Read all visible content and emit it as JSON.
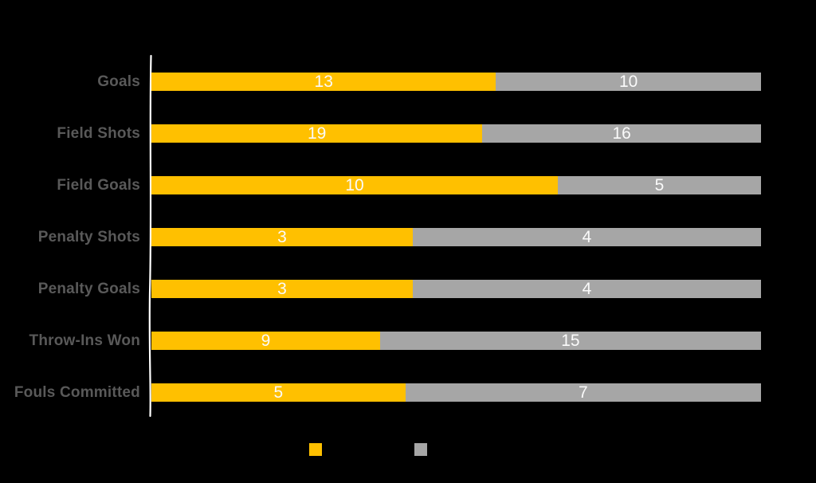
{
  "chart_data": {
    "type": "bar",
    "variant": "horizontal-stacked-100pct",
    "title": "",
    "xlabel": "",
    "ylabel": "",
    "grid": false,
    "legend_position": "bottom",
    "axis_line_color": "#ffffff",
    "background_color": "#000000",
    "category_label_color": "#595959",
    "value_label_color": "#fafafa",
    "categories": [
      "Goals",
      "Field Shots",
      "Field Goals",
      "Penalty Shots",
      "Penalty Goals",
      "Throw-Ins Won",
      "Fouls Committed"
    ],
    "series": [
      {
        "name": "series_1",
        "color": "#FFC000",
        "values": [
          13,
          19,
          10,
          3,
          3,
          9,
          5
        ]
      },
      {
        "name": "series_2",
        "color": "#A6A6A6",
        "values": [
          10,
          16,
          5,
          4,
          4,
          15,
          7
        ]
      }
    ]
  },
  "legend": {
    "swatches": [
      {
        "name": "series_1",
        "color": "#FFC000",
        "label": ""
      },
      {
        "name": "series_2",
        "color": "#A6A6A6",
        "label": ""
      }
    ]
  }
}
